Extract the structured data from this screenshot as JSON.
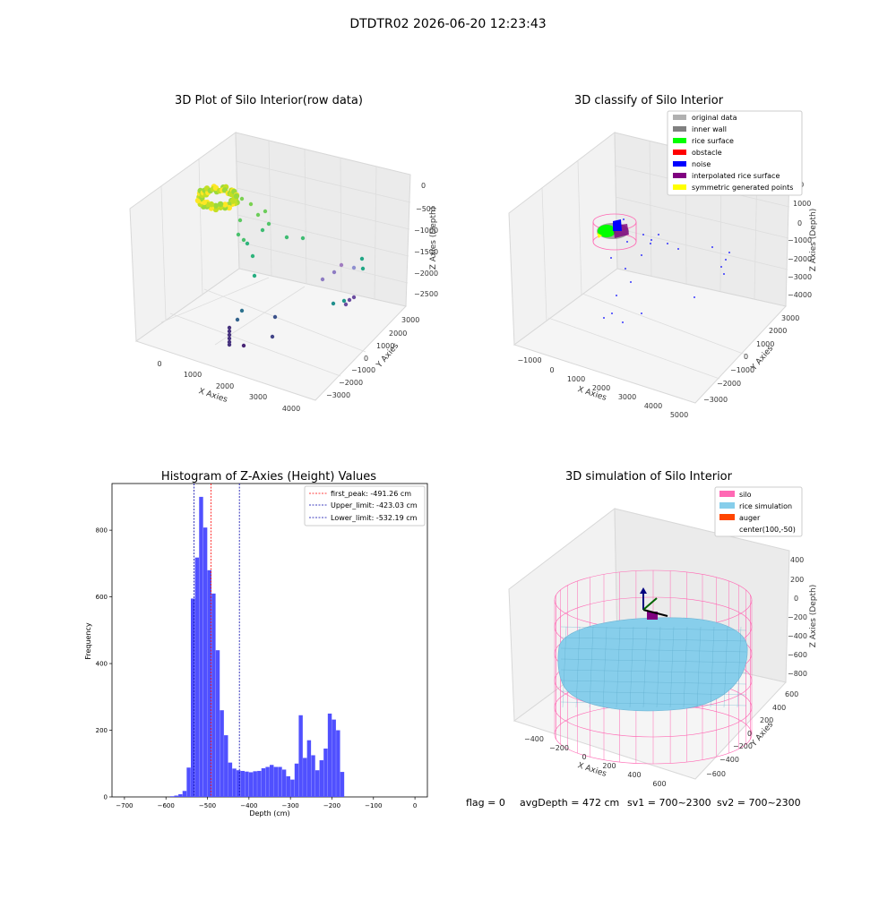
{
  "suptitle": "DTDTR02 2026-06-20 12:23:43",
  "footer": {
    "flag": "flag = 0",
    "avg": "avgDepth = 472 cm",
    "sv1": "sv1 = 700~2300",
    "sv2": "sv2 = 700~2300"
  },
  "colors": {
    "hist_bar": "#5050ff",
    "peak_line": "#ff0000",
    "limit_line": "#0000aa",
    "silo": "#ff69b4",
    "rice": "#87ceeb",
    "auger": "#ff4500",
    "original": "#b0b0b0",
    "inner_wall": "#808080",
    "rice_surface": "#00ff00",
    "obstacle": "#ff0000",
    "noise": "#0000ff",
    "interp": "#800080",
    "symm": "#ffff00"
  },
  "chart_data": [
    {
      "type": "scatter",
      "title": "3D Plot of Silo Interior(row data)",
      "xlabel": "X Axies",
      "ylabel": "Y Axies",
      "zlabel": "Z Axies (Depth)",
      "x_ticks": [
        "0",
        "1000",
        "2000",
        "3000",
        "4000"
      ],
      "y_ticks": [
        "3000",
        "2000",
        "1000",
        "0",
        "−1000",
        "−2000",
        "−3000"
      ],
      "z_ticks": [
        "0",
        "−500",
        "−1000",
        "−1500",
        "−2000",
        "−2500"
      ]
    },
    {
      "type": "scatter",
      "title": "3D classify of Silo Interior",
      "xlabel": "X Axies",
      "ylabel": "Y Axies",
      "zlabel": "Z Axies (Depth)",
      "x_ticks": [
        "−1000",
        "0",
        "1000",
        "2000",
        "3000",
        "4000",
        "5000"
      ],
      "y_ticks": [
        "3000",
        "2000",
        "1000",
        "0",
        "−1000",
        "−2000",
        "−3000"
      ],
      "z_ticks": [
        "1000",
        "0",
        "−1000",
        "−2000",
        "−3000",
        "−4000"
      ],
      "legend": [
        "original data",
        "inner wall",
        "rice surface",
        "obstacle",
        "noise",
        "interpolated rice surface",
        "symmetric generated points"
      ],
      "legend_partial_tick": "000"
    },
    {
      "type": "bar",
      "title": "Histogram of Z-Axies (Height) Values",
      "xlabel": "Depth (cm)",
      "ylabel": "Frequency",
      "xlim": [
        -730,
        30
      ],
      "ylim": [
        0,
        940
      ],
      "bin_start": -590,
      "bin_width": 10,
      "values": [
        2,
        4,
        8,
        18,
        88,
        595,
        718,
        900,
        808,
        680,
        610,
        440,
        260,
        185,
        103,
        85,
        80,
        78,
        76,
        74,
        77,
        78,
        86,
        90,
        96,
        90,
        90,
        82,
        62,
        52,
        100,
        245,
        117,
        170,
        125,
        80,
        110,
        145,
        250,
        232,
        200,
        75
      ],
      "x_ticks": [
        "−700",
        "−600",
        "−500",
        "−400",
        "−300",
        "−200",
        "−100",
        "0"
      ],
      "x_tick_values": [
        -700,
        -600,
        -500,
        -400,
        -300,
        -200,
        -100,
        0
      ],
      "y_ticks": [
        "0",
        "200",
        "400",
        "600",
        "800"
      ],
      "y_tick_values": [
        0,
        200,
        400,
        600,
        800
      ],
      "first_peak": -491.26,
      "upper_limit": -423.03,
      "lower_limit": -532.19,
      "legend": [
        "first_peak: -491.26 cm",
        "Upper_limit: -423.03 cm",
        "Lower_limit: -532.19 cm"
      ]
    },
    {
      "type": "scatter",
      "title": "3D simulation of Silo Interior",
      "xlabel": "X Axies",
      "ylabel": "Y Axies",
      "zlabel": "Z Axies (Depth)",
      "x_ticks": [
        "−400",
        "−200",
        "0",
        "200",
        "400",
        "600"
      ],
      "y_ticks": [
        "600",
        "400",
        "200",
        "0",
        "−200",
        "−400",
        "−600"
      ],
      "z_ticks": [
        "400",
        "200",
        "0",
        "−200",
        "−400",
        "−600",
        "−800"
      ],
      "legend": [
        "silo",
        "rice simulation",
        "auger",
        "center(100,-50)"
      ]
    }
  ]
}
